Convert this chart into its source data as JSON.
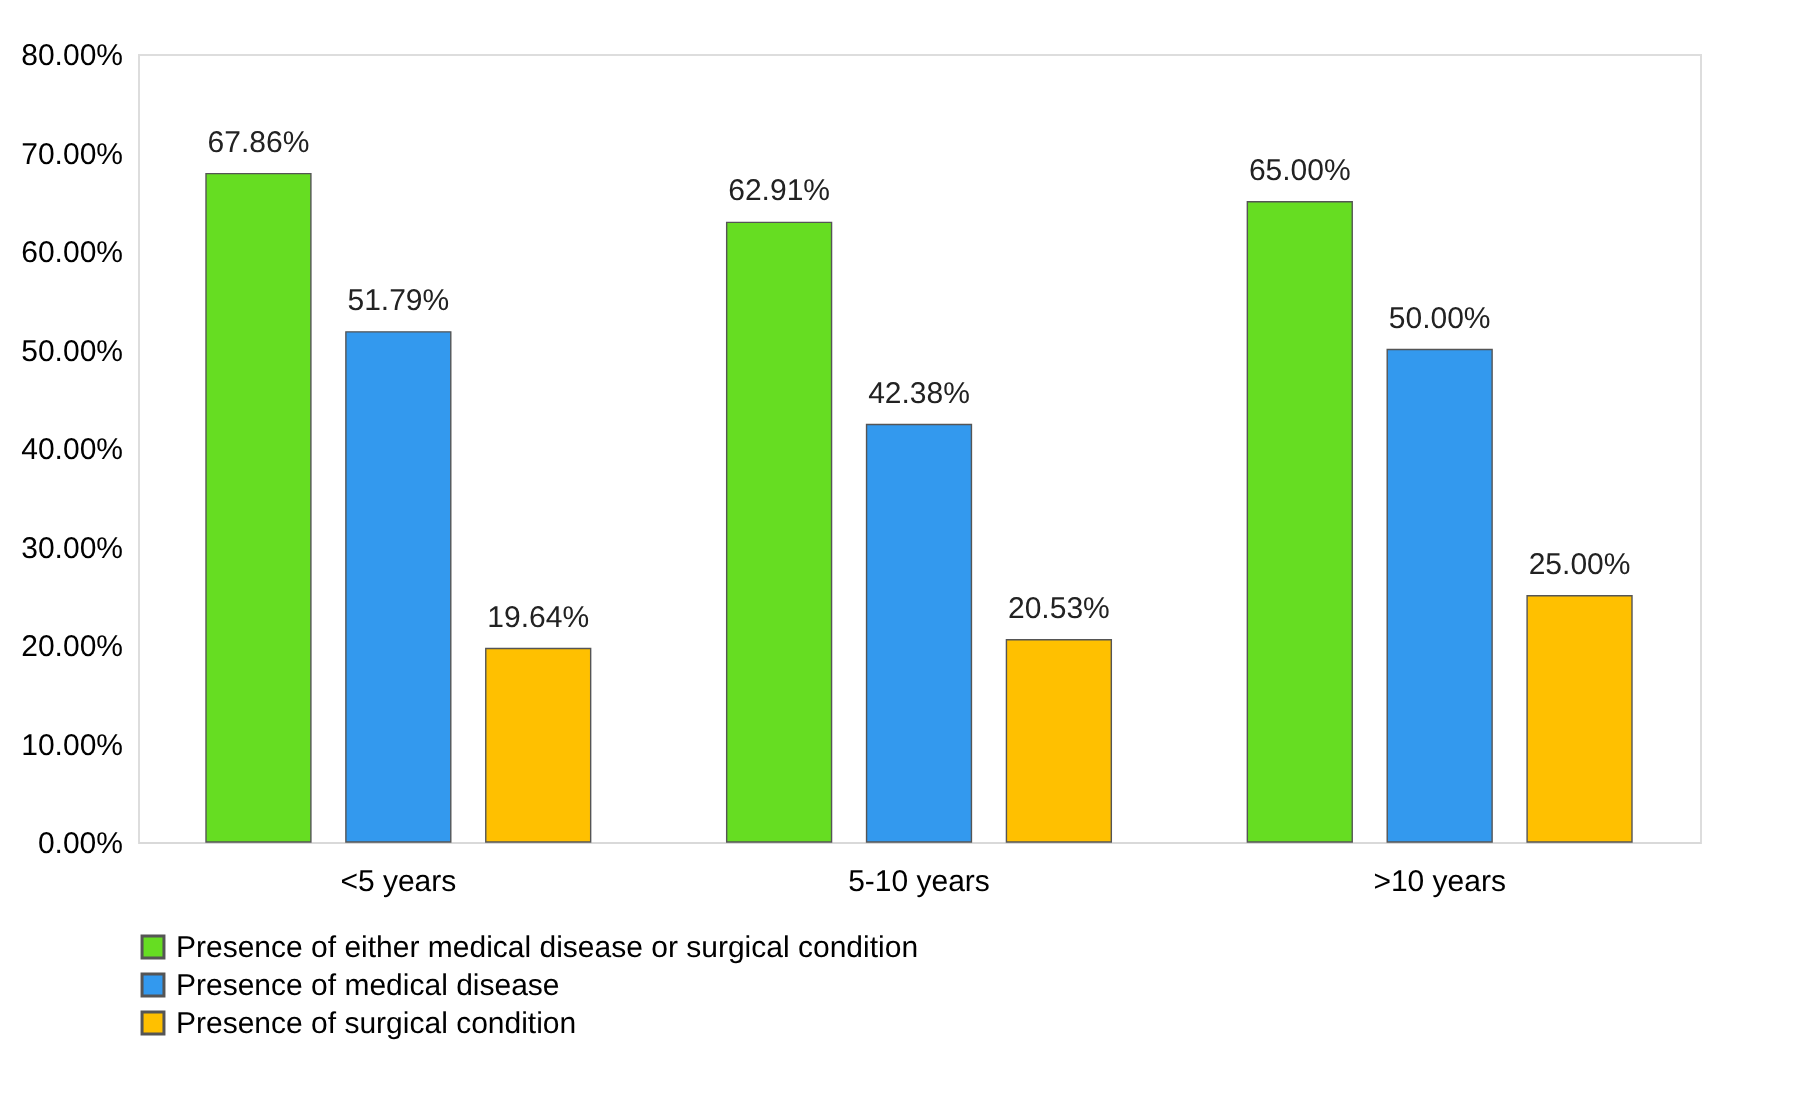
{
  "chart_data": {
    "type": "bar",
    "categories": [
      "<5 years",
      "5-10 years",
      ">10 years"
    ],
    "series": [
      {
        "name": "Presence of either medical disease or surgical condition",
        "color": "#66dd22",
        "values": [
          67.86,
          62.91,
          65.0
        ],
        "value_labels": [
          "67.86%",
          "62.91%",
          "65.00%"
        ]
      },
      {
        "name": "Presence of medical disease",
        "color": "#3399ee",
        "values": [
          51.79,
          42.38,
          50.0
        ],
        "value_labels": [
          "51.79%",
          "42.38%",
          "50.00%"
        ]
      },
      {
        "name": "Presence of surgical condition",
        "color": "#ffc000",
        "values": [
          19.64,
          20.53,
          25.0
        ],
        "value_labels": [
          "19.64%",
          "20.53%",
          "25.00%"
        ]
      }
    ],
    "ylim": [
      0,
      80
    ],
    "yticks": [
      {
        "value": 0,
        "label": "0.00%"
      },
      {
        "value": 10,
        "label": "10.00%"
      },
      {
        "value": 20,
        "label": "20.00%"
      },
      {
        "value": 30,
        "label": "30.00%"
      },
      {
        "value": 40,
        "label": "40.00%"
      },
      {
        "value": 50,
        "label": "50.00%"
      },
      {
        "value": 60,
        "label": "60.00%"
      },
      {
        "value": 70,
        "label": "70.00%"
      },
      {
        "value": 80,
        "label": "80.00%"
      }
    ],
    "grid": false,
    "legend": "bottom"
  }
}
